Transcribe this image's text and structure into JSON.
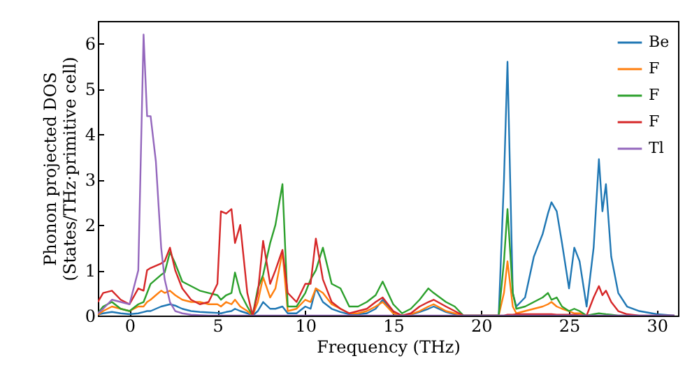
{
  "chart_data": {
    "type": "line",
    "xlabel": "Frequency (THz)",
    "ylabel": "Phonon projected DOS\n(States/THz·primitive cell)",
    "x": [
      -1.8,
      -1.5,
      -1,
      -0.5,
      0,
      0.5,
      0.8,
      1,
      1.2,
      1.5,
      1.8,
      2,
      2.3,
      2.6,
      3,
      3.5,
      4,
      4.5,
      5,
      5.2,
      5.5,
      5.8,
      6,
      6.3,
      6.7,
      7,
      7.3,
      7.6,
      8,
      8.3,
      8.7,
      9,
      9.5,
      10,
      10.3,
      10.6,
      11,
      11.5,
      12,
      12.5,
      13,
      13.5,
      14,
      14.4,
      15,
      15.5,
      16,
      16.5,
      17,
      17.3,
      18,
      18.5,
      19,
      20,
      21,
      21.3,
      21.5,
      21.8,
      22,
      22.5,
      23,
      23.5,
      23.8,
      24,
      24.3,
      24.6,
      25,
      25.3,
      25.6,
      26,
      26.4,
      26.7,
      26.9,
      27.1,
      27.4,
      27.8,
      28.3,
      29,
      30,
      31
    ],
    "series": [
      {
        "name": "Be",
        "color": "#1f77b4",
        "values": [
          0.02,
          0.05,
          0.08,
          0.05,
          0.03,
          0.05,
          0.08,
          0.1,
          0.1,
          0.15,
          0.2,
          0.22,
          0.25,
          0.22,
          0.15,
          0.1,
          0.08,
          0.07,
          0.06,
          0.05,
          0.08,
          0.1,
          0.15,
          0.1,
          0.05,
          0,
          0.1,
          0.3,
          0.15,
          0.15,
          0.2,
          0.05,
          0.05,
          0.2,
          0.15,
          0.6,
          0.3,
          0.15,
          0.08,
          0.03,
          0.03,
          0.05,
          0.15,
          0.35,
          0.05,
          0,
          0.02,
          0.08,
          0.15,
          0.2,
          0.08,
          0.03,
          0,
          0,
          0,
          3.0,
          5.6,
          0.5,
          0.2,
          0.4,
          1.3,
          1.8,
          2.25,
          2.5,
          2.3,
          1.6,
          0.6,
          1.5,
          1.2,
          0.2,
          1.5,
          3.45,
          2.3,
          2.9,
          1.3,
          0.5,
          0.2,
          0.1,
          0.03,
          0
        ]
      },
      {
        "name": "F",
        "color": "#ff7f0e",
        "values": [
          0.02,
          0.1,
          0.2,
          0.15,
          0.1,
          0.2,
          0.2,
          0.3,
          0.35,
          0.45,
          0.55,
          0.5,
          0.55,
          0.45,
          0.35,
          0.3,
          0.3,
          0.25,
          0.25,
          0.2,
          0.3,
          0.25,
          0.35,
          0.2,
          0.1,
          0,
          0.3,
          0.85,
          0.4,
          0.6,
          1.4,
          0.1,
          0.15,
          0.35,
          0.3,
          0.6,
          0.5,
          0.25,
          0.15,
          0.05,
          0.05,
          0.1,
          0.2,
          0.3,
          0.05,
          0,
          0.03,
          0.1,
          0.2,
          0.25,
          0.1,
          0.05,
          0,
          0,
          0,
          0.5,
          1.2,
          0.2,
          0.05,
          0.1,
          0.15,
          0.2,
          0.25,
          0.3,
          0.2,
          0.15,
          0.1,
          0.05,
          0.05,
          0,
          0,
          null,
          null,
          null,
          null,
          null,
          null,
          null,
          null,
          null
        ]
      },
      {
        "name": "F",
        "color": "#2ca02c",
        "values": [
          0.05,
          0.2,
          0.3,
          0.15,
          0.1,
          0.25,
          0.3,
          0.5,
          0.7,
          0.8,
          0.9,
          0.95,
          1.4,
          1.15,
          0.75,
          0.65,
          0.55,
          0.5,
          0.45,
          0.35,
          0.45,
          0.5,
          0.95,
          0.5,
          0.2,
          0,
          0.6,
          0.9,
          1.6,
          2.0,
          2.9,
          0.2,
          0.2,
          0.5,
          0.8,
          1.0,
          1.5,
          0.7,
          0.6,
          0.2,
          0.2,
          0.3,
          0.45,
          0.75,
          0.25,
          0.05,
          0.15,
          0.35,
          0.6,
          0.5,
          0.3,
          0.2,
          0,
          0,
          0,
          1.2,
          2.35,
          0.5,
          0.15,
          0.2,
          0.3,
          0.4,
          0.5,
          0.35,
          0.4,
          0.2,
          0.1,
          0.15,
          0.1,
          0,
          0.03,
          0.05,
          0.04,
          0.03,
          0.02,
          0,
          0,
          null,
          null,
          null
        ]
      },
      {
        "name": "F",
        "color": "#d62728",
        "values": [
          0.3,
          0.5,
          0.55,
          0.35,
          0.25,
          0.6,
          0.55,
          1.0,
          1.05,
          1.1,
          1.15,
          1.2,
          1.5,
          1.0,
          0.6,
          0.35,
          0.25,
          0.3,
          0.7,
          2.3,
          2.25,
          2.35,
          1.6,
          2.0,
          0.5,
          0,
          0.5,
          1.65,
          0.7,
          1.0,
          1.45,
          0.5,
          0.3,
          0.7,
          0.7,
          1.7,
          0.8,
          0.3,
          0.15,
          0.05,
          0.1,
          0.15,
          0.3,
          0.4,
          0.1,
          0,
          0.05,
          0.2,
          0.3,
          0.35,
          0.2,
          0.1,
          0,
          0,
          0,
          0,
          0.02,
          0.02,
          0.03,
          0.03,
          0.03,
          0.03,
          0.03,
          0.03,
          0.02,
          0.02,
          0.02,
          0.02,
          0.01,
          0,
          0.4,
          0.65,
          0.45,
          0.55,
          0.3,
          0.1,
          0.03,
          0,
          0,
          0
        ]
      },
      {
        "name": "Tl",
        "color": "#9467bd",
        "values": [
          0.05,
          0.15,
          0.35,
          0.3,
          0.25,
          1.0,
          6.2,
          4.4,
          4.4,
          3.4,
          1.5,
          0.8,
          0.3,
          0.1,
          0.05,
          0.02,
          0.01,
          0,
          0,
          0,
          0,
          0,
          0,
          0,
          0,
          0,
          0,
          0,
          0,
          0,
          0,
          0,
          0,
          0,
          0,
          0,
          0,
          0,
          0,
          0,
          0,
          0,
          0,
          0,
          0,
          0,
          0,
          0,
          0,
          0,
          0,
          0,
          0,
          0,
          0,
          0,
          0,
          0,
          0,
          0,
          0,
          0,
          0,
          0,
          0,
          0,
          0,
          0,
          0,
          0,
          0,
          0,
          0,
          0,
          0,
          0,
          0,
          0,
          0,
          0
        ]
      }
    ],
    "xlim": [
      -1.8,
      31.2
    ],
    "xticks": [
      0,
      5,
      10,
      15,
      20,
      25,
      30
    ],
    "ylim": [
      0,
      6.5
    ],
    "yticks": [
      0,
      1,
      2,
      3,
      4,
      5,
      6
    ],
    "legend": "top right",
    "grid": false,
    "line_style": "solid"
  }
}
